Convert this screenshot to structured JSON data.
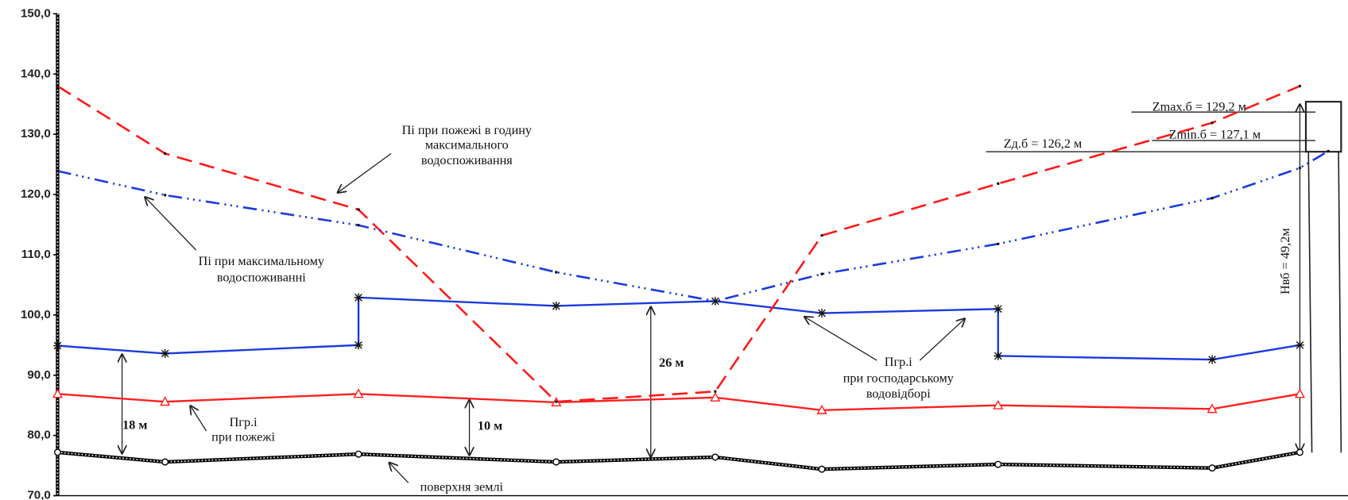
{
  "chart_data": {
    "type": "line",
    "ylim": [
      70,
      150
    ],
    "yticks": [
      {
        "value": 70,
        "label": "70,0"
      },
      {
        "value": 80,
        "label": "80,0"
      },
      {
        "value": 90,
        "label": "90,0"
      },
      {
        "value": 100,
        "label": "100,0"
      },
      {
        "value": 110,
        "label": "110,0"
      },
      {
        "value": 120,
        "label": "120,0"
      },
      {
        "value": 130,
        "label": "130,0"
      },
      {
        "value": 140,
        "label": "140,0"
      },
      {
        "value": 150,
        "label": "150,0"
      }
    ],
    "xlim": [
      0,
      1478
    ],
    "series": [
      {
        "color": "#000000",
        "marker": "circle",
        "style": "ground",
        "x": [
          0,
          125,
          350,
          580,
          765,
          889,
          1094,
          1343,
          1445
        ],
        "values": [
          77.2,
          75.6,
          76.9,
          75.6,
          76.4,
          74.4,
          75.2,
          74.6,
          77.2
        ]
      },
      {
        "color": "#ff2020",
        "marker": "triangle",
        "style": "solid",
        "x": [
          0,
          125,
          350,
          580,
          765,
          889,
          1094,
          1343,
          1445
        ],
        "values": [
          86.9,
          85.6,
          86.9,
          85.5,
          86.3,
          84.2,
          85.0,
          84.4,
          86.9
        ]
      },
      {
        "color": "#1a3be0",
        "marker": "star",
        "style": "solid",
        "x": [
          0,
          125,
          350,
          350,
          580,
          765,
          889,
          1094,
          1094,
          1343,
          1445
        ],
        "values": [
          94.9,
          93.6,
          95.0,
          102.9,
          101.5,
          102.3,
          100.3,
          101.0,
          93.2,
          92.6,
          95.0
        ]
      },
      {
        "color": "#ff1a1a",
        "marker": "dot",
        "style": "dashed",
        "x": [
          0,
          125,
          350,
          580,
          765,
          889,
          1094,
          1343,
          1445
        ],
        "values": [
          138.0,
          126.8,
          117.5,
          85.6,
          87.3,
          113.2,
          121.8,
          131.9,
          138.0
        ]
      },
      {
        "color": "#1a3be0",
        "marker": "dot",
        "style": "dashdot",
        "x": [
          0,
          125,
          350,
          580,
          765,
          889,
          1094,
          1343,
          1445,
          1478
        ],
        "values": [
          123.9,
          119.9,
          114.9,
          107.1,
          102.3,
          106.8,
          111.8,
          119.4,
          124.4,
          127.2
        ]
      }
    ],
    "annotations": [
      [
        "Пі при пожежі в годину",
        "максимального",
        "водоспоживання"
      ],
      [
        "Пі при максимальному",
        "водоспоживанні"
      ],
      [
        "Пгр.і",
        "при господарському",
        "водовідборі"
      ],
      [
        "Пгр.і",
        "при пожежі"
      ],
      [
        "поверхня землі"
      ],
      [
        "18 м"
      ],
      [
        "10 м"
      ],
      [
        "26 м"
      ],
      [
        "Zmax.б = 129,2 м"
      ],
      [
        "Zmin.б = 127,1 м"
      ],
      [
        "Zд.б = 126,2 м"
      ],
      [
        "Hвб = 49,2м"
      ]
    ]
  }
}
